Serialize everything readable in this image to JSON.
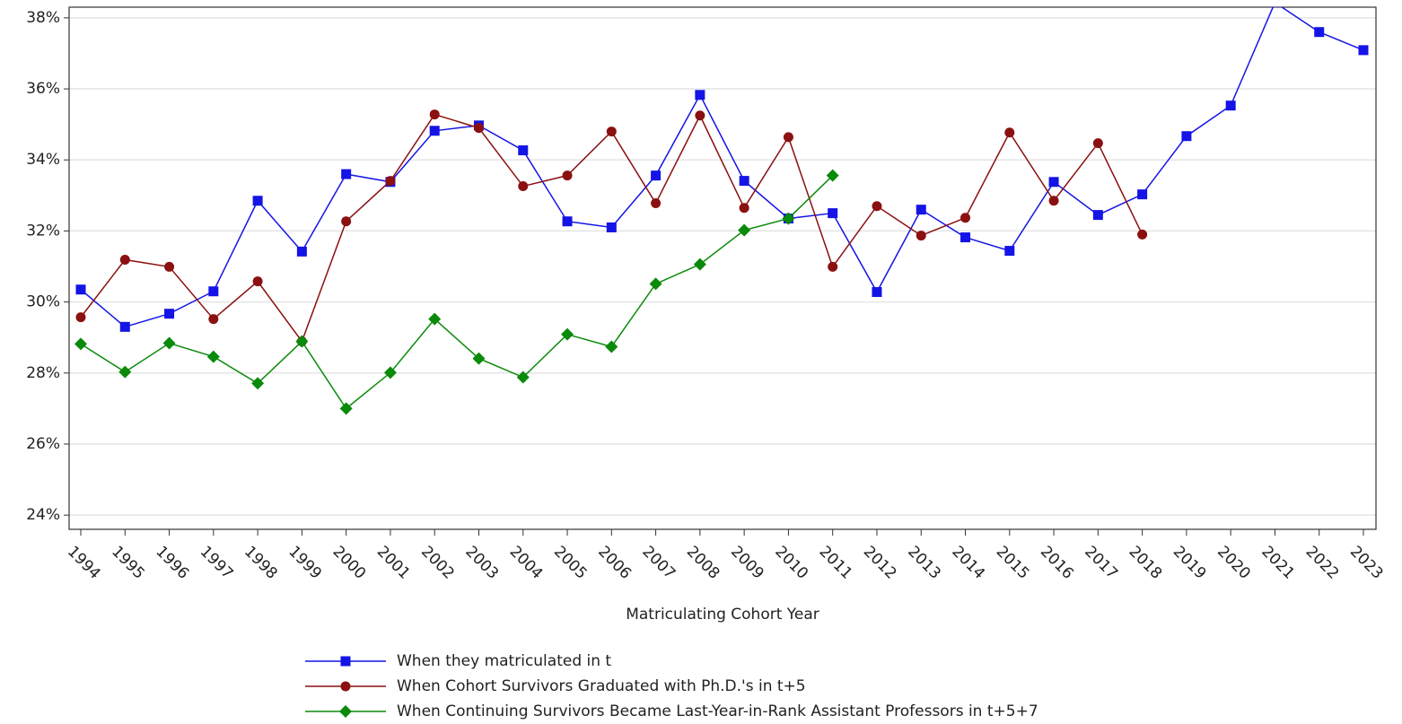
{
  "chart_data": {
    "type": "line",
    "x_label": "Matriculating Cohort Year",
    "categories": [
      "1994",
      "1995",
      "1996",
      "1997",
      "1998",
      "1999",
      "2000",
      "2001",
      "2002",
      "2003",
      "2004",
      "2005",
      "2006",
      "2007",
      "2008",
      "2009",
      "2010",
      "2011",
      "2012",
      "2013",
      "2014",
      "2015",
      "2016",
      "2017",
      "2018",
      "2019",
      "2020",
      "2021",
      "2022",
      "2023"
    ],
    "series": [
      {
        "name": "When they matriculated in t",
        "color": "#1414e6",
        "marker": "square",
        "values": [
          30.35,
          29.3,
          29.67,
          30.3,
          32.85,
          31.42,
          33.6,
          33.38,
          34.82,
          34.97,
          34.27,
          32.27,
          32.1,
          33.56,
          35.83,
          33.41,
          32.35,
          32.5,
          30.28,
          32.6,
          31.82,
          31.44,
          33.38,
          32.45,
          33.03,
          34.67,
          35.53,
          38.43,
          37.6,
          37.09
        ]
      },
      {
        "name": "When Cohort Survivors Graduated with Ph.D.'s in t+5",
        "color": "#8b1010",
        "marker": "circle",
        "values": [
          29.57,
          31.19,
          30.99,
          29.52,
          30.58,
          28.89,
          32.27,
          33.41,
          35.28,
          34.9,
          33.26,
          33.56,
          34.8,
          32.78,
          35.25,
          32.65,
          34.64,
          30.99,
          32.7,
          31.87,
          32.37,
          34.77,
          32.85,
          34.47,
          31.9,
          null,
          null,
          null,
          null,
          null
        ]
      },
      {
        "name": "When Continuing Survivors Became Last-Year-in-Rank Assistant Professors in t+5+7",
        "color": "#0a8a0a",
        "marker": "diamond",
        "values": [
          28.82,
          28.03,
          28.84,
          28.46,
          27.71,
          28.89,
          27.0,
          28.01,
          29.52,
          28.41,
          27.88,
          29.09,
          28.74,
          30.51,
          31.06,
          32.02,
          32.35,
          33.56,
          null,
          null,
          null,
          null,
          null,
          null,
          null,
          null,
          null,
          null,
          null,
          null
        ]
      }
    ],
    "ylim": [
      23.6,
      38.3
    ],
    "yticks": [
      {
        "value": 24,
        "label": "24%"
      },
      {
        "value": 26,
        "label": "26%"
      },
      {
        "value": 28,
        "label": "28%"
      },
      {
        "value": 30,
        "label": "30%"
      },
      {
        "value": 32,
        "label": "32%"
      },
      {
        "value": 34,
        "label": "34%"
      },
      {
        "value": 36,
        "label": "36%"
      },
      {
        "value": 38,
        "label": "38%"
      }
    ],
    "grid": true,
    "legend": "bottom"
  }
}
